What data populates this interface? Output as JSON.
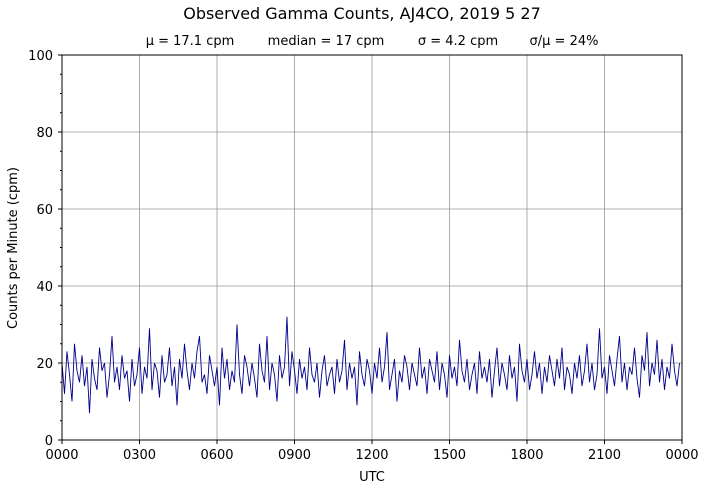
{
  "chart_data": {
    "type": "line",
    "title": "Observed Gamma Counts, AJ4CO, 2019 5 27",
    "subtitle_stats": [
      "μ = 17.1 cpm",
      "median = 17 cpm",
      "σ = 4.2 cpm",
      "σ/μ = 24%"
    ],
    "xlabel": "UTC",
    "ylabel": "Counts per Minute (cpm)",
    "ylim": [
      0,
      100
    ],
    "xlim_hours": [
      0,
      24
    ],
    "x_tick_labels": [
      "0000",
      "0300",
      "0600",
      "0900",
      "1200",
      "1500",
      "1800",
      "2100",
      "0000"
    ],
    "y_ticks": [
      0,
      20,
      40,
      60,
      80,
      100
    ],
    "grid": true,
    "line_color": "#00008b",
    "series": [
      {
        "values": [
          20,
          12,
          23,
          17,
          10,
          25,
          18,
          15,
          22,
          14,
          19,
          7,
          21,
          16,
          13,
          24,
          18,
          20,
          11,
          17,
          27,
          15,
          19,
          13,
          22,
          16,
          18,
          10,
          21,
          14,
          17,
          24,
          12,
          19,
          16,
          29,
          13,
          20,
          18,
          11,
          22,
          15,
          17,
          24,
          14,
          19,
          9,
          21,
          16,
          25,
          18,
          13,
          20,
          16,
          23,
          27,
          15,
          17,
          12,
          22,
          18,
          14,
          19,
          9,
          24,
          16,
          21,
          13,
          18,
          15,
          30,
          17,
          12,
          22,
          19,
          14,
          20,
          16,
          11,
          25,
          18,
          15,
          27,
          13,
          20,
          17,
          10,
          22,
          16,
          19,
          32,
          14,
          23,
          18,
          12,
          21,
          16,
          19,
          13,
          24,
          17,
          15,
          20,
          11,
          18,
          22,
          14,
          17,
          19,
          12,
          21,
          15,
          18,
          26,
          13,
          20,
          16,
          19,
          9,
          23,
          17,
          14,
          21,
          18,
          12,
          20,
          16,
          24,
          15,
          19,
          28,
          13,
          17,
          21,
          10,
          18,
          15,
          22,
          19,
          13,
          20,
          17,
          14,
          24,
          16,
          19,
          12,
          21,
          18,
          15,
          23,
          13,
          20,
          17,
          11,
          22,
          16,
          19,
          14,
          26,
          18,
          15,
          21,
          13,
          17,
          20,
          12,
          23,
          16,
          19,
          15,
          21,
          11,
          18,
          24,
          14,
          20,
          17,
          13,
          22,
          16,
          19,
          10,
          25,
          18,
          15,
          21,
          13,
          17,
          23,
          16,
          20,
          12,
          19,
          15,
          22,
          18,
          14,
          21,
          16,
          24,
          13,
          19,
          17,
          12,
          20,
          16,
          22,
          14,
          18,
          25,
          15,
          20,
          13,
          17,
          29,
          16,
          19,
          12,
          22,
          18,
          14,
          21,
          27,
          15,
          20,
          13,
          19,
          17,
          24,
          16,
          11,
          22,
          18,
          28,
          14,
          20,
          17,
          26,
          15,
          21,
          13,
          19,
          16,
          25,
          18,
          14,
          20
        ]
      }
    ]
  }
}
